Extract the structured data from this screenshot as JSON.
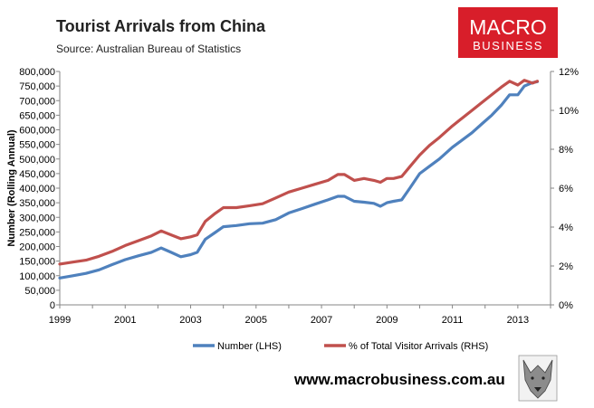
{
  "header": {
    "title": "Tourist Arrivals from China",
    "subtitle": "Source: Australian Bureau of Statistics"
  },
  "logo": {
    "line1": "MACRO",
    "line2": "BUSINESS",
    "bg_color": "#d81e2a"
  },
  "footer": {
    "url": "www.macrobusiness.com.au",
    "mascot_icon": "wolf-head-icon"
  },
  "chart_data": {
    "type": "line",
    "title": "Tourist Arrivals from China",
    "subtitle": "Source: Australian Bureau of Statistics",
    "xlabel": "",
    "ylabel": "Number (Rolling Annual)",
    "y2label": "",
    "xlim": [
      1999.0,
      2014.0
    ],
    "ylim": [
      0,
      800000
    ],
    "y2lim": [
      0,
      12
    ],
    "x_ticks": [
      "1999",
      "2001",
      "2003",
      "2005",
      "2007",
      "2009",
      "2011",
      "2013"
    ],
    "y_ticks": [
      "0",
      "50,000",
      "100,000",
      "150,000",
      "200,000",
      "250,000",
      "300,000",
      "350,000",
      "400,000",
      "450,000",
      "500,000",
      "550,000",
      "600,000",
      "650,000",
      "700,000",
      "750,000",
      "800,000"
    ],
    "y2_ticks": [
      "0%",
      "2%",
      "4%",
      "6%",
      "8%",
      "10%",
      "12%"
    ],
    "grid": false,
    "legend_position": "bottom",
    "series": [
      {
        "name": "Number (LHS)",
        "axis": "left",
        "color": "#4f81bd",
        "x": [
          1999.0,
          1999.4,
          1999.8,
          2000.2,
          2000.6,
          2001.0,
          2001.4,
          2001.8,
          2002.1,
          2002.4,
          2002.7,
          2003.0,
          2003.2,
          2003.45,
          2003.75,
          2004.0,
          2004.4,
          2004.8,
          2005.2,
          2005.6,
          2006.0,
          2006.4,
          2006.8,
          2007.2,
          2007.5,
          2007.7,
          2008.0,
          2008.3,
          2008.6,
          2008.8,
          2009.0,
          2009.2,
          2009.45,
          2009.7,
          2010.0,
          2010.3,
          2010.6,
          2011.0,
          2011.3,
          2011.6,
          2011.9,
          2012.2,
          2012.5,
          2012.75,
          2013.0,
          2013.2,
          2013.45,
          2013.6
        ],
        "values": [
          92000,
          100000,
          108000,
          120000,
          138000,
          155000,
          168000,
          180000,
          195000,
          180000,
          165000,
          172000,
          180000,
          225000,
          248000,
          268000,
          272000,
          278000,
          280000,
          292000,
          315000,
          330000,
          345000,
          360000,
          372000,
          372000,
          355000,
          352000,
          348000,
          338000,
          350000,
          355000,
          360000,
          400000,
          450000,
          475000,
          500000,
          540000,
          565000,
          590000,
          620000,
          650000,
          685000,
          720000,
          720000,
          750000,
          762000,
          765000
        ]
      },
      {
        "name": "% of Total Visitor Arrivals (RHS)",
        "axis": "right",
        "color": "#c0504d",
        "x": [
          1999.0,
          1999.4,
          1999.8,
          2000.2,
          2000.6,
          2001.0,
          2001.4,
          2001.8,
          2002.1,
          2002.4,
          2002.7,
          2003.0,
          2003.2,
          2003.45,
          2003.75,
          2004.0,
          2004.4,
          2004.8,
          2005.2,
          2005.6,
          2006.0,
          2006.4,
          2006.8,
          2007.2,
          2007.5,
          2007.7,
          2008.0,
          2008.3,
          2008.6,
          2008.8,
          2009.0,
          2009.2,
          2009.45,
          2009.7,
          2010.0,
          2010.3,
          2010.6,
          2011.0,
          2011.3,
          2011.6,
          2011.9,
          2012.2,
          2012.5,
          2012.75,
          2013.0,
          2013.2,
          2013.45,
          2013.6
        ],
        "values": [
          2.1,
          2.2,
          2.3,
          2.5,
          2.75,
          3.05,
          3.3,
          3.55,
          3.8,
          3.6,
          3.4,
          3.5,
          3.6,
          4.3,
          4.7,
          5.0,
          5.0,
          5.1,
          5.2,
          5.5,
          5.8,
          6.0,
          6.2,
          6.4,
          6.7,
          6.7,
          6.4,
          6.5,
          6.4,
          6.3,
          6.5,
          6.5,
          6.6,
          7.1,
          7.7,
          8.2,
          8.6,
          9.2,
          9.6,
          10.0,
          10.4,
          10.8,
          11.2,
          11.5,
          11.3,
          11.55,
          11.4,
          11.5
        ]
      }
    ]
  }
}
